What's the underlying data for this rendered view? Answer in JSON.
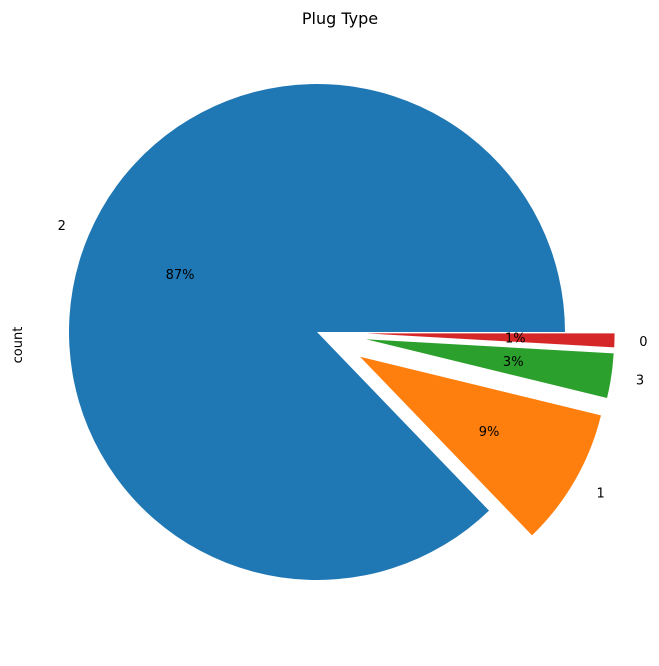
{
  "chart_data": {
    "type": "pie",
    "title": "Plug Type",
    "ylabel": "count",
    "categories": [
      "2",
      "1",
      "3",
      "0"
    ],
    "values": [
      87.2,
      9.0,
      2.9,
      0.9
    ],
    "percent_labels": [
      "87%",
      "9%",
      "3%",
      "1%"
    ],
    "explode": [
      0.0,
      0.2,
      0.2,
      0.2
    ],
    "colors": [
      "#1f77b4",
      "#ff7f0e",
      "#2ca02c",
      "#d62728"
    ],
    "legend": "none"
  }
}
